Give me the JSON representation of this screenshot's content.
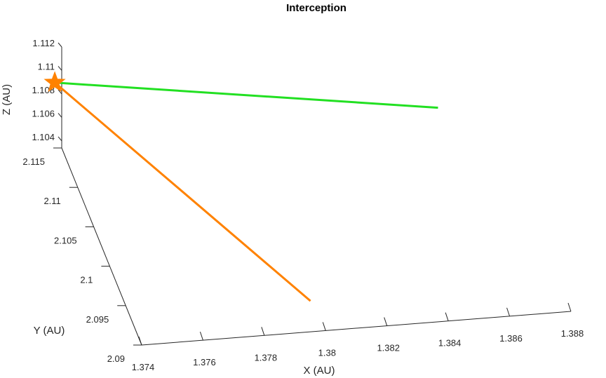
{
  "chart_data": {
    "type": "line3d",
    "title": "Interception",
    "xlabel": "X (AU)",
    "ylabel": "Y (AU)",
    "zlabel": "Z (AU)",
    "x_ticks": [
      "1.374",
      "1.376",
      "1.378",
      "1.38",
      "1.382",
      "1.384",
      "1.386",
      "1.388"
    ],
    "y_ticks": [
      "2.09",
      "2.095",
      "2.1",
      "2.105",
      "2.11",
      "2.115"
    ],
    "z_ticks": [
      "1.104",
      "1.106",
      "1.108",
      "1.11",
      "1.112"
    ],
    "xlim": [
      1.374,
      1.388
    ],
    "ylim": [
      2.09,
      2.115
    ],
    "zlim": [
      1.1034,
      1.112
    ],
    "grid": false,
    "series": [
      {
        "color": "#22e022",
        "points": [
          {
            "x": 1.3737,
            "y": 2.1143,
            "z": 1.1095
          },
          {
            "x": 1.3862,
            "y": 2.1143,
            "z": 1.1048
          }
        ]
      },
      {
        "color": "#ff8200",
        "points": [
          {
            "x": 1.3737,
            "y": 2.1143,
            "z": 1.1095
          },
          {
            "x": 1.3799,
            "y": 2.0938,
            "z": 1.1034
          }
        ]
      }
    ],
    "markers": [
      {
        "shape": "star",
        "color": "#ff8200",
        "x": 1.3737,
        "y": 2.1143,
        "z": 1.1095
      }
    ]
  }
}
